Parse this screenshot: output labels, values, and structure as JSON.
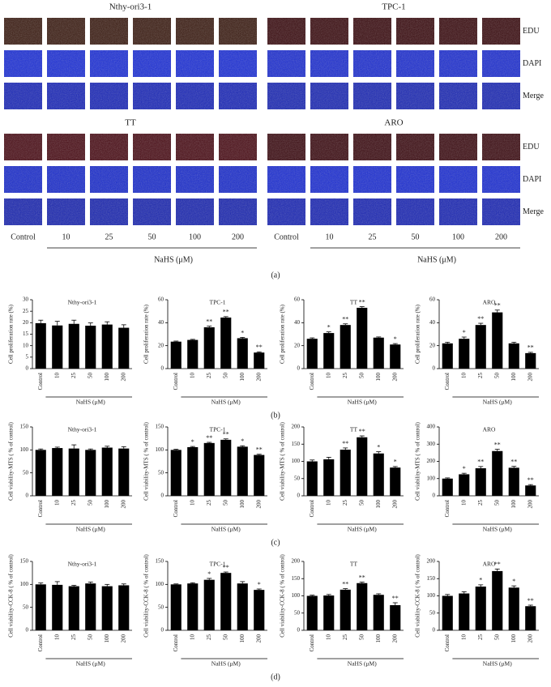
{
  "panel_a": {
    "groups": [
      {
        "title": "Nthy-ori3-1"
      },
      {
        "title": "TPC-1"
      },
      {
        "title": "TT"
      },
      {
        "title": "ARO"
      }
    ],
    "channels": [
      "EDU",
      "DAPI",
      "Merge"
    ],
    "categories": [
      "Control",
      "10",
      "25",
      "50",
      "100",
      "200"
    ],
    "x_label": "NaHS (μM)"
  },
  "panel_labels": [
    "(a)",
    "(b)",
    "(c)",
    "(d)"
  ],
  "chart_data": [
    {
      "type": "bar",
      "title": "Nthy-ori3-1",
      "y_label": "Cell proliferation rate (%)",
      "x_label": "NaHS (μM)",
      "color": "#000000",
      "categories": [
        "Control",
        "10",
        "25",
        "50",
        "100",
        "200"
      ],
      "values": [
        19.8,
        18.8,
        19.5,
        18.7,
        19.2,
        17.8
      ],
      "errors": [
        1.3,
        1.8,
        1.6,
        1.2,
        1.2,
        1.3
      ],
      "significance": [
        null,
        null,
        null,
        null,
        null,
        null
      ],
      "ylim": [
        0,
        30
      ],
      "yticks": [
        0,
        5,
        10,
        15,
        20,
        25,
        30
      ]
    },
    {
      "type": "bar",
      "title": "TPC-1",
      "y_label": "Cell proliferation rate (%)",
      "x_label": "NaHS (μM)",
      "color": "#000000",
      "categories": [
        "Control",
        "10",
        "25",
        "50",
        "100",
        "200"
      ],
      "values": [
        23.5,
        25,
        36,
        44.5,
        26.5,
        14
      ],
      "errors": [
        0.5,
        0.5,
        1,
        0.8,
        0.7,
        0.6
      ],
      "significance": [
        null,
        null,
        "**",
        "**",
        "*",
        "**"
      ],
      "ylim": [
        0,
        60
      ],
      "yticks": [
        0,
        20,
        40,
        60
      ]
    },
    {
      "type": "bar",
      "title": "TT",
      "y_label": "Cell proliferation rate (%)",
      "x_label": "NaHS (μM)",
      "color": "#000000",
      "categories": [
        "Control",
        "10",
        "25",
        "50",
        "100",
        "200"
      ],
      "values": [
        26,
        31,
        38,
        53,
        27,
        21
      ],
      "errors": [
        0.8,
        1,
        1,
        1,
        0.6,
        0.8
      ],
      "significance": [
        null,
        "*",
        "**",
        "**",
        null,
        "*"
      ],
      "ylim": [
        0,
        60
      ],
      "yticks": [
        0,
        20,
        40,
        60
      ]
    },
    {
      "type": "bar",
      "title": "ARO",
      "y_label": "Cell proliferation rate (%)",
      "x_label": "NaHS (μM)",
      "color": "#000000",
      "categories": [
        "Control",
        "10",
        "25",
        "50",
        "100",
        "200"
      ],
      "values": [
        22,
        26,
        38,
        49,
        22,
        13.5
      ],
      "errors": [
        1,
        1.5,
        1.5,
        2,
        1,
        0.7
      ],
      "significance": [
        null,
        "*",
        "**",
        "**",
        null,
        "**"
      ],
      "ylim": [
        0,
        60
      ],
      "yticks": [
        0,
        20,
        40,
        60
      ]
    },
    {
      "type": "bar",
      "title": "Nthy-ori3-1",
      "y_label": "Cell viability-MTS ( % of control)",
      "x_label": "NaHS (μM)",
      "color": "#000000",
      "categories": [
        "Control",
        "10",
        "25",
        "50",
        "100",
        "200"
      ],
      "values": [
        100,
        104,
        103,
        100,
        105,
        103
      ],
      "errors": [
        2,
        2,
        8,
        2,
        3,
        4
      ],
      "significance": [
        null,
        null,
        null,
        null,
        null,
        null
      ],
      "ylim": [
        0,
        150
      ],
      "yticks": [
        0,
        50,
        100,
        150
      ]
    },
    {
      "type": "bar",
      "title": "TPC-1",
      "y_label": "Cell viability-MTS ( % of control)",
      "x_label": "NaHS (μM)",
      "color": "#000000",
      "categories": [
        "Control",
        "10",
        "25",
        "50",
        "100",
        "200"
      ],
      "values": [
        100,
        106,
        115,
        122,
        107,
        89
      ],
      "errors": [
        1.5,
        1.5,
        1.5,
        2,
        2,
        1.5
      ],
      "significance": [
        null,
        "*",
        "**",
        "**",
        "*",
        "**"
      ],
      "ylim": [
        0,
        150
      ],
      "yticks": [
        0,
        50,
        100,
        150
      ]
    },
    {
      "type": "bar",
      "title": "TT",
      "y_label": "Cell viability-MTS ( % of control)",
      "x_label": "NaHS (μM)",
      "color": "#000000",
      "categories": [
        "Control",
        "10",
        "25",
        "50",
        "100",
        "200"
      ],
      "values": [
        100,
        106,
        134,
        170,
        123,
        82
      ],
      "errors": [
        4,
        6,
        5,
        4,
        5,
        3
      ],
      "significance": [
        null,
        null,
        "**",
        "**",
        "*",
        "*"
      ],
      "ylim": [
        0,
        200
      ],
      "yticks": [
        0,
        50,
        100,
        150,
        200
      ]
    },
    {
      "type": "bar",
      "title": "ARO",
      "y_label": "Cell viability-MTS ( % of control)",
      "x_label": "NaHS (μM)",
      "color": "#000000",
      "categories": [
        "Control",
        "10",
        "25",
        "50",
        "100",
        "200"
      ],
      "values": [
        100,
        125,
        160,
        260,
        163,
        60
      ],
      "errors": [
        4,
        6,
        10,
        10,
        8,
        5
      ],
      "significance": [
        null,
        "*",
        "**",
        "**",
        "**",
        "**"
      ],
      "ylim": [
        0,
        400
      ],
      "yticks": [
        0,
        100,
        200,
        300,
        400
      ]
    },
    {
      "type": "bar",
      "title": "Nthy-ori3-1",
      "y_label": "Cell viability-CCK-8 ( % of control)",
      "x_label": "NaHS (μM)",
      "color": "#000000",
      "categories": [
        "Control",
        "10",
        "25",
        "50",
        "100",
        "200"
      ],
      "values": [
        100,
        99,
        96,
        102,
        96,
        98
      ],
      "errors": [
        3,
        7,
        2,
        3,
        4,
        3
      ],
      "significance": [
        null,
        null,
        null,
        null,
        null,
        null
      ],
      "ylim": [
        0,
        150
      ],
      "yticks": [
        0,
        50,
        100,
        150
      ]
    },
    {
      "type": "bar",
      "title": "TPC-1",
      "y_label": "Cell viability-CCK-8 ( % of control)",
      "x_label": "NaHS (μM)",
      "color": "#000000",
      "categories": [
        "Control",
        "10",
        "25",
        "50",
        "100",
        "200"
      ],
      "values": [
        100,
        102,
        110,
        125,
        102,
        88
      ],
      "errors": [
        1,
        1.5,
        3,
        2,
        4,
        2
      ],
      "significance": [
        null,
        null,
        "*",
        "**",
        null,
        "*"
      ],
      "ylim": [
        0,
        150
      ],
      "yticks": [
        0,
        50,
        100,
        150
      ]
    },
    {
      "type": "bar",
      "title": "TT",
      "y_label": "Cell viability-CCK-8 ( % of control)",
      "x_label": "NaHS (μM)",
      "color": "#000000",
      "categories": [
        "Control",
        "10",
        "25",
        "50",
        "100",
        "200"
      ],
      "values": [
        100,
        101,
        118,
        137,
        103,
        73
      ],
      "errors": [
        2,
        3,
        3,
        3,
        3,
        7
      ],
      "significance": [
        null,
        null,
        "**",
        "**",
        null,
        "**"
      ],
      "ylim": [
        0,
        200
      ],
      "yticks": [
        0,
        50,
        100,
        150,
        200
      ]
    },
    {
      "type": "bar",
      "title": "ARO",
      "y_label": "Cell viability-CCK-8 ( % of control)",
      "x_label": "NaHS (μM)",
      "color": "#000000",
      "categories": [
        "Control",
        "10",
        "25",
        "50",
        "100",
        "200"
      ],
      "values": [
        100,
        107,
        127,
        172,
        124,
        70
      ],
      "errors": [
        4,
        5,
        5,
        6,
        5,
        3
      ],
      "significance": [
        null,
        null,
        "*",
        "**",
        "*",
        "**"
      ],
      "ylim": [
        0,
        200
      ],
      "yticks": [
        0,
        50,
        100,
        150,
        200
      ]
    }
  ]
}
